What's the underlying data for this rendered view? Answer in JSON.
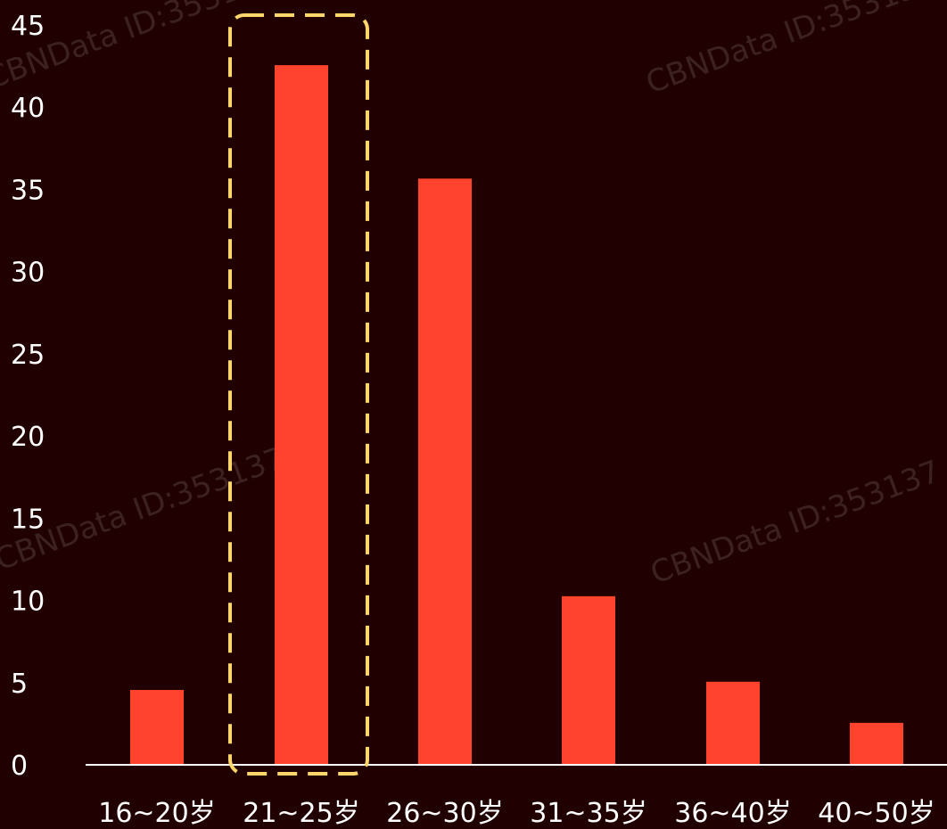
{
  "colors": {
    "background": "#200000",
    "bar": "#ff432d",
    "axis": "#ffffff",
    "highlight": "#ffd66b"
  },
  "watermark": "CBNData ID:353137",
  "chart_data": {
    "type": "bar",
    "categories": [
      "16~20岁",
      "21~25岁",
      "26~30岁",
      "31~35岁",
      "36~40岁",
      "40~50岁"
    ],
    "values": [
      4.5,
      42.5,
      35.6,
      10.2,
      5.0,
      2.5
    ],
    "ylim": [
      0,
      45
    ],
    "yticks": [
      0,
      5,
      10,
      15,
      20,
      25,
      30,
      35,
      40,
      45
    ],
    "grid": false,
    "legend": "none",
    "highlighted_category": "21~25岁"
  }
}
